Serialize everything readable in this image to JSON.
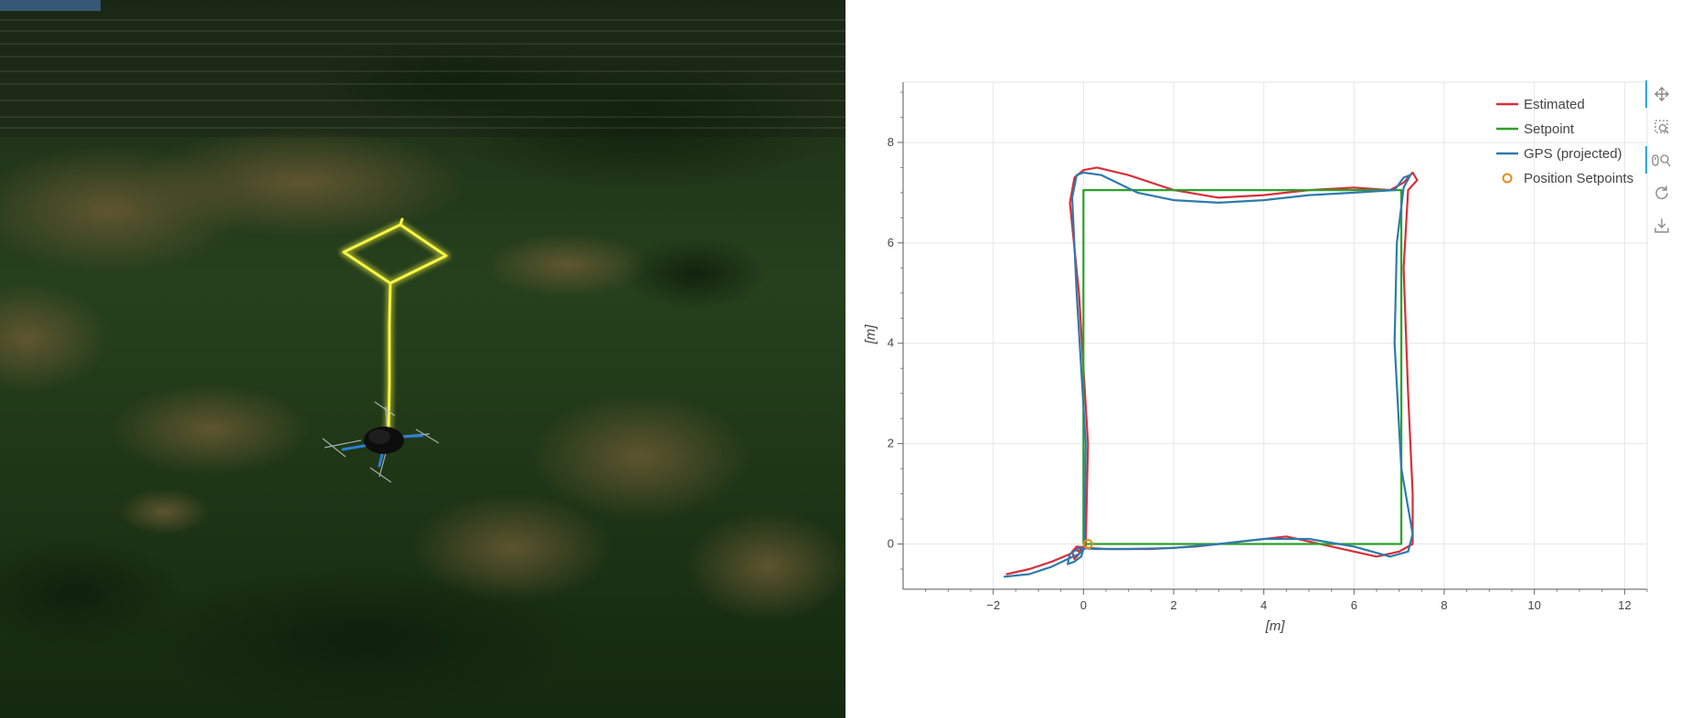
{
  "simulation": {
    "view": "3d-flight-sim",
    "trail_color": "#f5f542",
    "terrain_color": "#1f3a16"
  },
  "chart_data": {
    "type": "line",
    "xlabel": "[m]",
    "ylabel": "[m]",
    "xlim": [
      -4,
      12.5
    ],
    "ylim": [
      -0.9,
      9.2
    ],
    "xticks": [
      -2,
      0,
      2,
      4,
      6,
      8,
      10,
      12
    ],
    "yticks": [
      0,
      2,
      4,
      6,
      8
    ],
    "grid": true,
    "legend_position": "top-right",
    "series": [
      {
        "name": "Estimated",
        "color": "#d62f3a",
        "x": [
          -1.7,
          -1.2,
          -0.7,
          -0.3,
          -0.15,
          0.05,
          0.1,
          -0.1,
          -0.3,
          -0.2,
          0.0,
          0.3,
          1.0,
          2.0,
          3.0,
          4.0,
          5.0,
          6.0,
          6.8,
          7.1,
          7.3,
          7.4,
          7.2,
          7.1,
          7.2,
          7.3,
          7.3,
          7.0,
          6.5,
          5.5,
          4.5,
          3.5,
          2.5,
          1.5,
          0.5,
          0.1,
          -0.15,
          -0.25,
          -0.2,
          -0.1,
          0.0,
          -0.1,
          -0.2
        ],
        "y": [
          -0.6,
          -0.5,
          -0.35,
          -0.2,
          -0.1,
          -0.05,
          2.0,
          5.0,
          6.8,
          7.3,
          7.45,
          7.5,
          7.35,
          7.05,
          6.9,
          6.95,
          7.05,
          7.1,
          7.05,
          7.2,
          7.4,
          7.25,
          7.05,
          5.5,
          3.0,
          1.0,
          0.0,
          -0.15,
          -0.25,
          -0.05,
          0.15,
          0.05,
          -0.05,
          -0.1,
          -0.1,
          -0.08,
          -0.05,
          -0.15,
          -0.3,
          -0.2,
          -0.05,
          -0.15,
          -0.1
        ]
      },
      {
        "name": "Setpoint",
        "color": "#2ca02c",
        "x": [
          0,
          0,
          7.05,
          7.05,
          0
        ],
        "y": [
          0,
          7.05,
          7.05,
          0,
          0
        ]
      },
      {
        "name": "GPS (projected)",
        "color": "#2e7aab",
        "x": [
          -1.75,
          -1.2,
          -0.7,
          -0.35,
          -0.1,
          0.02,
          0.05,
          -0.15,
          -0.25,
          -0.15,
          0.0,
          0.4,
          1.2,
          2.0,
          3.0,
          4.0,
          5.0,
          6.0,
          6.9,
          7.1,
          7.25,
          7.1,
          6.95,
          6.9,
          7.05,
          7.3,
          7.2,
          6.8,
          6.0,
          5.0,
          4.0,
          3.0,
          2.0,
          1.0,
          0.3,
          -0.1,
          -0.3,
          -0.35,
          -0.2,
          -0.05,
          0.0
        ],
        "y": [
          -0.65,
          -0.6,
          -0.45,
          -0.3,
          -0.2,
          -0.1,
          2.0,
          5.0,
          6.9,
          7.35,
          7.4,
          7.35,
          7.0,
          6.85,
          6.8,
          6.85,
          6.95,
          7.0,
          7.05,
          7.3,
          7.35,
          7.1,
          6.0,
          4.0,
          1.5,
          0.2,
          -0.15,
          -0.25,
          -0.05,
          0.1,
          0.1,
          0.0,
          -0.08,
          -0.1,
          -0.1,
          -0.08,
          -0.2,
          -0.4,
          -0.35,
          -0.25,
          -0.1
        ]
      }
    ],
    "markers": {
      "name": "Position Setpoints",
      "color": "#e08e1b",
      "x": [
        0.1
      ],
      "y": [
        0.0
      ]
    }
  },
  "legend": {
    "estimated": "Estimated",
    "setpoint": "Setpoint",
    "gps": "GPS (projected)",
    "position_setpoints": "Position Setpoints"
  },
  "toolbar": {
    "tools": [
      {
        "icon": "pan-icon",
        "active": true
      },
      {
        "icon": "box-zoom-icon",
        "active": false
      },
      {
        "icon": "wheel-zoom-icon",
        "active": true
      },
      {
        "icon": "reset-icon",
        "active": false
      },
      {
        "icon": "save-icon",
        "active": false
      }
    ],
    "accent_color": "#26aae1"
  }
}
